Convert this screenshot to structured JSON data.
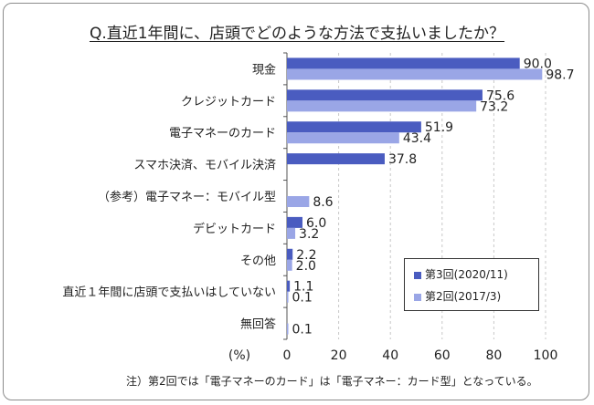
{
  "title": "Q.直近1年間に、店頭でどのような方法で支払いましたか？",
  "note": "注）第2回では「電子マネーのカード」は「電子マネー：カード型」となっている。",
  "legend_title": "",
  "colors": {
    "series1": "#4a5cc0",
    "series2": "#9aa6e6",
    "grid": "#c8c8c8",
    "axis": "#555555"
  },
  "chart_data": {
    "type": "bar",
    "orientation": "horizontal",
    "title": "Q.直近1年間に、店頭でどのような方法で支払いましたか？",
    "xlabel": "(%)",
    "ylabel": "",
    "xlim": [
      0,
      100
    ],
    "ticks": [
      0,
      20,
      40,
      60,
      80,
      100
    ],
    "grid": true,
    "legend_position": "bottom-right",
    "categories": [
      "現金",
      "クレジットカード",
      "電子マネーのカード",
      "スマホ決済、モバイル決済",
      "（参考）電子マネー：モバイル型",
      "デビットカード",
      "その他",
      "直近１年間に店頭で支払いはしていない",
      "無回答"
    ],
    "series": [
      {
        "name": "第3回(2020/11)",
        "values": [
          90.0,
          75.6,
          51.9,
          37.8,
          null,
          6.0,
          2.2,
          1.1,
          null
        ]
      },
      {
        "name": "第2回(2017/3)",
        "values": [
          98.7,
          73.2,
          43.4,
          null,
          8.6,
          3.2,
          2.0,
          0.1,
          0.1
        ]
      }
    ]
  }
}
